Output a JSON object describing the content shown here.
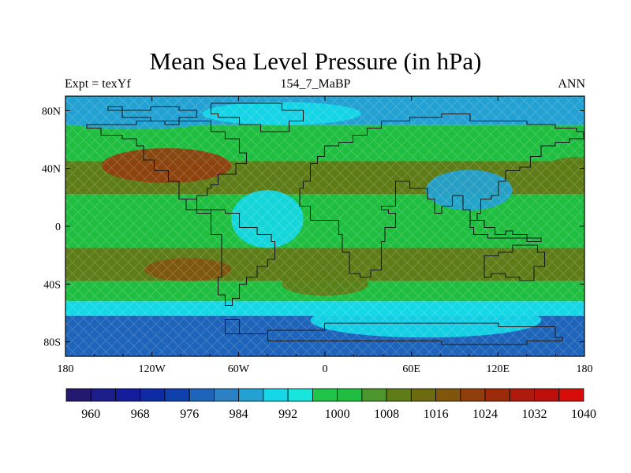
{
  "title": "Mean Sea Level Pressure (in hPa)",
  "left_string": "Expt = texYf",
  "center_string": "154_7_MaBP",
  "right_string": "ANN",
  "chart_data": {
    "type": "heatmap",
    "title": "Mean Sea Level Pressure (in hPa)",
    "xlim": [
      -180,
      180
    ],
    "ylim": [
      -90,
      90
    ],
    "x_ticks": [
      {
        "value": -180,
        "label": "180"
      },
      {
        "value": -120,
        "label": "120W"
      },
      {
        "value": -60,
        "label": "60W"
      },
      {
        "value": 0,
        "label": "0"
      },
      {
        "value": 60,
        "label": "60E"
      },
      {
        "value": 120,
        "label": "120E"
      },
      {
        "value": 180,
        "label": "180"
      }
    ],
    "y_ticks": [
      {
        "value": 80,
        "label": "80N"
      },
      {
        "value": 40,
        "label": "40N"
      },
      {
        "value": 0,
        "label": "0"
      },
      {
        "value": -40,
        "label": "40S"
      },
      {
        "value": -80,
        "label": "80S"
      }
    ],
    "colorbar": {
      "colors": [
        "#23196e",
        "#1c1c8a",
        "#151d9c",
        "#0f2aa6",
        "#1040ae",
        "#1d64ba",
        "#2b81c4",
        "#23a1d2",
        "#14d8e6",
        "#16e6dc",
        "#1fc548",
        "#1fbe40",
        "#4d952e",
        "#5e7c17",
        "#6d6b0f",
        "#80550e",
        "#913e0e",
        "#9e2a0c",
        "#ae1a0c",
        "#be0f0b",
        "#d70d0b"
      ],
      "labels": [
        {
          "after_box": 1,
          "text": "960"
        },
        {
          "after_box": 3,
          "text": "968"
        },
        {
          "after_box": 5,
          "text": "976"
        },
        {
          "after_box": 7,
          "text": "984"
        },
        {
          "after_box": 9,
          "text": "992"
        },
        {
          "after_box": 11,
          "text": "1000"
        },
        {
          "after_box": 13,
          "text": "1008"
        },
        {
          "after_box": 15,
          "text": "1016"
        },
        {
          "after_box": 17,
          "text": "1024"
        },
        {
          "after_box": 19,
          "text": "1032"
        },
        {
          "after_box": 21,
          "text": "1040"
        }
      ]
    },
    "field_bands": [
      {
        "lat": [
          90,
          70
        ],
        "value": 986
      },
      {
        "lat": [
          70,
          45
        ],
        "value": 1000
      },
      {
        "lat": [
          45,
          22
        ],
        "value": 1010
      },
      {
        "lat": [
          22,
          -15
        ],
        "value": 1000
      },
      {
        "lat": [
          -15,
          -38
        ],
        "value": 1009
      },
      {
        "lat": [
          -38,
          -52
        ],
        "value": 1000
      },
      {
        "lat": [
          -52,
          -62
        ],
        "value": 988
      },
      {
        "lat": [
          -62,
          -90
        ],
        "value": 976
      }
    ],
    "field_features": [
      {
        "center": [
          -110,
          42
        ],
        "radius": [
          45,
          12
        ],
        "value": 1020
      },
      {
        "center": [
          -95,
          -30
        ],
        "radius": [
          30,
          8
        ],
        "value": 1018
      },
      {
        "center": [
          20,
          35
        ],
        "radius": [
          40,
          10
        ],
        "value": 1010
      },
      {
        "center": [
          175,
          38
        ],
        "radius": [
          25,
          10
        ],
        "value": 1010
      },
      {
        "center": [
          100,
          25
        ],
        "radius": [
          30,
          14
        ],
        "value": 986
      },
      {
        "center": [
          -40,
          5
        ],
        "radius": [
          25,
          20
        ],
        "value": 990
      },
      {
        "center": [
          0,
          -40
        ],
        "radius": [
          30,
          8
        ],
        "value": 1008
      },
      {
        "center": [
          -130,
          75
        ],
        "radius": [
          55,
          8
        ],
        "value": 984
      },
      {
        "center": [
          -30,
          78
        ],
        "radius": [
          55,
          8
        ],
        "value": 988
      },
      {
        "center": [
          70,
          -65
        ],
        "radius": [
          80,
          12
        ],
        "value": 990
      }
    ]
  }
}
